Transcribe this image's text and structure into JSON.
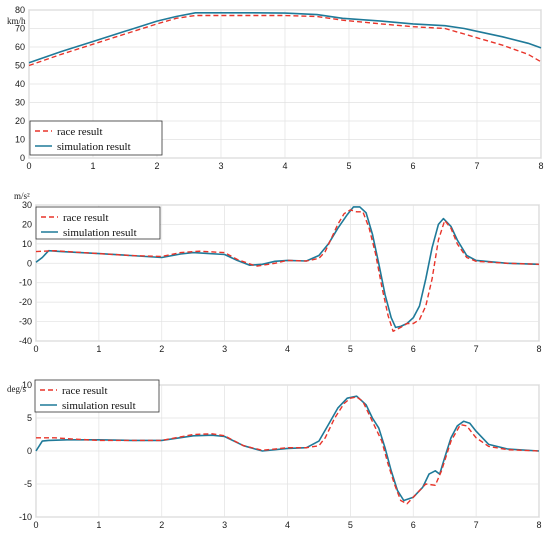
{
  "chart_data": [
    {
      "type": "line",
      "unit_label": "km/h",
      "xlim": [
        0,
        8
      ],
      "ylim": [
        0,
        80
      ],
      "xticks": [
        0,
        1,
        2,
        3,
        4,
        5,
        6,
        7,
        8
      ],
      "yticks": [
        0,
        10,
        20,
        30,
        40,
        50,
        60,
        70,
        80
      ],
      "grid": true,
      "legend_position": "bottom-left",
      "series": [
        {
          "name": "race result",
          "style": "dashed",
          "color": "#e8342a",
          "points": [
            [
              0,
              50
            ],
            [
              0.5,
              56
            ],
            [
              1,
              61.5
            ],
            [
              1.5,
              67
            ],
            [
              2,
              72.5
            ],
            [
              2.3,
              75.5
            ],
            [
              2.6,
              77
            ],
            [
              3,
              77
            ],
            [
              3.5,
              77
            ],
            [
              4,
              77
            ],
            [
              4.5,
              76.5
            ],
            [
              4.9,
              74.5
            ],
            [
              5.5,
              72.5
            ],
            [
              6,
              71
            ],
            [
              6.5,
              70
            ],
            [
              6.8,
              67
            ],
            [
              7,
              65
            ],
            [
              7.4,
              61
            ],
            [
              7.8,
              56
            ],
            [
              8,
              52
            ]
          ]
        },
        {
          "name": "simulation result",
          "style": "solid",
          "color": "#1f7a99",
          "points": [
            [
              0,
              51.5
            ],
            [
              0.5,
              57.5
            ],
            [
              1,
              63
            ],
            [
              1.5,
              68.5
            ],
            [
              2,
              74
            ],
            [
              2.3,
              76.5
            ],
            [
              2.6,
              78.5
            ],
            [
              3,
              78.5
            ],
            [
              3.5,
              78.5
            ],
            [
              4,
              78.3
            ],
            [
              4.5,
              77.5
            ],
            [
              4.9,
              75.5
            ],
            [
              5.5,
              74
            ],
            [
              6,
              72.5
            ],
            [
              6.5,
              71.5
            ],
            [
              6.8,
              70
            ],
            [
              7,
              68.5
            ],
            [
              7.4,
              65.5
            ],
            [
              7.8,
              62
            ],
            [
              8,
              59.5
            ]
          ]
        }
      ]
    },
    {
      "type": "line",
      "unit_label": "m/s²",
      "xlim": [
        0,
        8
      ],
      "ylim": [
        -40,
        30
      ],
      "xticks": [
        0,
        1,
        2,
        3,
        4,
        5,
        6,
        7,
        8
      ],
      "yticks": [
        -40,
        -30,
        -20,
        -10,
        0,
        10,
        20,
        30
      ],
      "grid": true,
      "legend_position": "top-left",
      "series": [
        {
          "name": "race result",
          "style": "dashed",
          "color": "#e8342a",
          "points": [
            [
              0,
              6
            ],
            [
              0.3,
              6.5
            ],
            [
              0.6,
              5.8
            ],
            [
              1,
              5
            ],
            [
              1.5,
              4
            ],
            [
              2,
              3.5
            ],
            [
              2.3,
              5.5
            ],
            [
              2.6,
              6.2
            ],
            [
              3,
              5.5
            ],
            [
              3.2,
              2
            ],
            [
              3.5,
              -1.5
            ],
            [
              3.8,
              0
            ],
            [
              4,
              1.5
            ],
            [
              4.3,
              1.2
            ],
            [
              4.5,
              2.5
            ],
            [
              4.6,
              6
            ],
            [
              4.7,
              13
            ],
            [
              4.8,
              20
            ],
            [
              4.9,
              25.5
            ],
            [
              5,
              27.5
            ],
            [
              5.1,
              26.5
            ],
            [
              5.2,
              26.5
            ],
            [
              5.3,
              18
            ],
            [
              5.4,
              5
            ],
            [
              5.5,
              -12
            ],
            [
              5.6,
              -27
            ],
            [
              5.68,
              -35
            ],
            [
              5.8,
              -33
            ],
            [
              5.9,
              -31
            ],
            [
              6,
              -31
            ],
            [
              6.1,
              -29
            ],
            [
              6.2,
              -22
            ],
            [
              6.3,
              -8
            ],
            [
              6.4,
              12
            ],
            [
              6.5,
              22
            ],
            [
              6.6,
              18
            ],
            [
              6.7,
              10
            ],
            [
              6.85,
              3
            ],
            [
              7,
              1
            ],
            [
              7.5,
              0
            ],
            [
              8,
              -0.5
            ]
          ]
        },
        {
          "name": "simulation result",
          "style": "solid",
          "color": "#1f7a99",
          "points": [
            [
              0,
              0.5
            ],
            [
              0.1,
              3
            ],
            [
              0.2,
              6.5
            ],
            [
              0.4,
              6
            ],
            [
              0.7,
              5.5
            ],
            [
              1,
              5
            ],
            [
              1.5,
              4
            ],
            [
              2,
              3
            ],
            [
              2.3,
              4.8
            ],
            [
              2.5,
              5.5
            ],
            [
              3,
              4.5
            ],
            [
              3.2,
              1.5
            ],
            [
              3.4,
              -1
            ],
            [
              3.6,
              -0.5
            ],
            [
              3.8,
              1
            ],
            [
              4,
              1.5
            ],
            [
              4.3,
              1.2
            ],
            [
              4.5,
              4
            ],
            [
              4.65,
              10
            ],
            [
              4.8,
              18
            ],
            [
              4.95,
              25
            ],
            [
              5.05,
              29
            ],
            [
              5.15,
              29
            ],
            [
              5.25,
              26
            ],
            [
              5.35,
              15
            ],
            [
              5.45,
              0
            ],
            [
              5.55,
              -16
            ],
            [
              5.65,
              -28
            ],
            [
              5.72,
              -33
            ],
            [
              5.8,
              -32.5
            ],
            [
              5.9,
              -31
            ],
            [
              6,
              -28
            ],
            [
              6.1,
              -22
            ],
            [
              6.2,
              -8
            ],
            [
              6.3,
              8
            ],
            [
              6.4,
              20
            ],
            [
              6.48,
              23
            ],
            [
              6.6,
              19
            ],
            [
              6.7,
              12
            ],
            [
              6.85,
              4
            ],
            [
              7,
              1.5
            ],
            [
              7.5,
              0
            ],
            [
              8,
              -0.5
            ]
          ]
        }
      ]
    },
    {
      "type": "line",
      "unit_label": "deg/s",
      "xlim": [
        0,
        8
      ],
      "ylim": [
        -10,
        10
      ],
      "xticks": [
        0,
        1,
        2,
        3,
        4,
        5,
        6,
        7,
        8
      ],
      "yticks": [
        -10,
        -5,
        0,
        5,
        10
      ],
      "grid": true,
      "legend_position": "top-left",
      "series": [
        {
          "name": "race result",
          "style": "dashed",
          "color": "#e8342a",
          "points": [
            [
              0,
              2
            ],
            [
              0.3,
              2
            ],
            [
              0.6,
              1.8
            ],
            [
              1,
              1.6
            ],
            [
              1.5,
              1.6
            ],
            [
              2,
              1.6
            ],
            [
              2.5,
              2.5
            ],
            [
              2.8,
              2.6
            ],
            [
              3,
              2.3
            ],
            [
              3.3,
              0.8
            ],
            [
              3.6,
              0.1
            ],
            [
              4,
              0.5
            ],
            [
              4.3,
              0.5
            ],
            [
              4.5,
              0.8
            ],
            [
              4.6,
              2
            ],
            [
              4.75,
              5
            ],
            [
              4.9,
              7.2
            ],
            [
              5,
              8
            ],
            [
              5.1,
              8.2
            ],
            [
              5.2,
              7.5
            ],
            [
              5.3,
              5.5
            ],
            [
              5.4,
              3.5
            ],
            [
              5.5,
              1.5
            ],
            [
              5.6,
              -2
            ],
            [
              5.7,
              -5
            ],
            [
              5.8,
              -7.5
            ],
            [
              5.9,
              -8
            ],
            [
              6,
              -7
            ],
            [
              6.1,
              -6
            ],
            [
              6.2,
              -5
            ],
            [
              6.35,
              -5.2
            ],
            [
              6.45,
              -3
            ],
            [
              6.6,
              1.5
            ],
            [
              6.75,
              4
            ],
            [
              6.85,
              3.8
            ],
            [
              7,
              2
            ],
            [
              7.2,
              0.7
            ],
            [
              7.5,
              0.2
            ],
            [
              8,
              0
            ]
          ]
        },
        {
          "name": "simulation result",
          "style": "solid",
          "color": "#1f7a99",
          "points": [
            [
              0,
              0
            ],
            [
              0.1,
              1.5
            ],
            [
              0.2,
              1.6
            ],
            [
              0.5,
              1.7
            ],
            [
              1,
              1.7
            ],
            [
              1.5,
              1.6
            ],
            [
              2,
              1.6
            ],
            [
              2.5,
              2.3
            ],
            [
              2.8,
              2.4
            ],
            [
              3,
              2.2
            ],
            [
              3.3,
              0.8
            ],
            [
              3.6,
              0
            ],
            [
              4,
              0.4
            ],
            [
              4.3,
              0.5
            ],
            [
              4.5,
              1.5
            ],
            [
              4.65,
              4
            ],
            [
              4.8,
              6.5
            ],
            [
              4.95,
              8
            ],
            [
              5.1,
              8.3
            ],
            [
              5.25,
              7
            ],
            [
              5.35,
              5
            ],
            [
              5.45,
              3.5
            ],
            [
              5.55,
              0.5
            ],
            [
              5.65,
              -3
            ],
            [
              5.75,
              -6
            ],
            [
              5.85,
              -7.5
            ],
            [
              6,
              -7
            ],
            [
              6.15,
              -5.5
            ],
            [
              6.25,
              -3.5
            ],
            [
              6.35,
              -3
            ],
            [
              6.42,
              -3.5
            ],
            [
              6.5,
              -1
            ],
            [
              6.6,
              2
            ],
            [
              6.7,
              3.8
            ],
            [
              6.8,
              4.5
            ],
            [
              6.9,
              4.2
            ],
            [
              7,
              3
            ],
            [
              7.2,
              1
            ],
            [
              7.5,
              0.3
            ],
            [
              8,
              0
            ]
          ]
        }
      ]
    }
  ]
}
